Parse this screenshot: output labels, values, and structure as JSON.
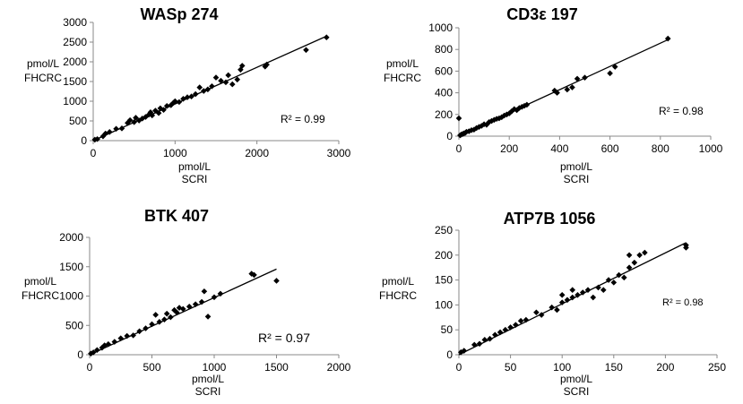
{
  "chart_data": [
    {
      "type": "scatter",
      "title": "WASp 274",
      "xlabel": [
        "pmol/L",
        "SCRI"
      ],
      "ylabel": [
        "pmol/L",
        "FHCRC"
      ],
      "xlim": [
        0,
        3000
      ],
      "ylim": [
        0,
        3000
      ],
      "xticks": [
        0,
        1000,
        2000,
        3000
      ],
      "yticks": [
        0,
        500,
        1000,
        1500,
        2000,
        2500,
        3000
      ],
      "r2_text": "R² = 0.99",
      "trendline": {
        "x": [
          0,
          2850
        ],
        "y": [
          0,
          2650
        ]
      },
      "points": [
        [
          20,
          25
        ],
        [
          50,
          40
        ],
        [
          120,
          110
        ],
        [
          150,
          180
        ],
        [
          200,
          220
        ],
        [
          280,
          300
        ],
        [
          350,
          310
        ],
        [
          420,
          450
        ],
        [
          450,
          520
        ],
        [
          500,
          470
        ],
        [
          520,
          580
        ],
        [
          560,
          510
        ],
        [
          600,
          560
        ],
        [
          640,
          600
        ],
        [
          680,
          660
        ],
        [
          700,
          720
        ],
        [
          720,
          640
        ],
        [
          760,
          760
        ],
        [
          800,
          700
        ],
        [
          820,
          820
        ],
        [
          860,
          780
        ],
        [
          900,
          880
        ],
        [
          950,
          900
        ],
        [
          980,
          960
        ],
        [
          1000,
          1000
        ],
        [
          1050,
          980
        ],
        [
          1100,
          1060
        ],
        [
          1150,
          1100
        ],
        [
          1200,
          1120
        ],
        [
          1250,
          1180
        ],
        [
          1300,
          1350
        ],
        [
          1350,
          1260
        ],
        [
          1400,
          1300
        ],
        [
          1450,
          1380
        ],
        [
          1500,
          1600
        ],
        [
          1560,
          1520
        ],
        [
          1620,
          1480
        ],
        [
          1650,
          1660
        ],
        [
          1700,
          1430
        ],
        [
          1760,
          1550
        ],
        [
          1800,
          1800
        ],
        [
          1820,
          1900
        ],
        [
          2100,
          1880
        ],
        [
          2120,
          1930
        ],
        [
          2600,
          2300
        ],
        [
          2850,
          2620
        ]
      ]
    },
    {
      "type": "scatter",
      "title": "CD3ε 197",
      "xlabel": [
        "pmol/L",
        "SCRI"
      ],
      "ylabel": [
        "pmol/L",
        "FHCRC"
      ],
      "xlim": [
        0,
        1000
      ],
      "ylim": [
        0,
        1000
      ],
      "xticks": [
        0,
        200,
        400,
        600,
        800,
        1000
      ],
      "yticks": [
        0,
        200,
        400,
        600,
        800,
        1000
      ],
      "r2_text": "R² = 0.98",
      "trendline": {
        "x": [
          0,
          830
        ],
        "y": [
          0,
          890
        ]
      },
      "points": [
        [
          0,
          165
        ],
        [
          5,
          8
        ],
        [
          10,
          15
        ],
        [
          15,
          20
        ],
        [
          20,
          25
        ],
        [
          25,
          30
        ],
        [
          30,
          40
        ],
        [
          40,
          45
        ],
        [
          50,
          55
        ],
        [
          60,
          60
        ],
        [
          70,
          75
        ],
        [
          80,
          85
        ],
        [
          90,
          95
        ],
        [
          100,
          110
        ],
        [
          110,
          105
        ],
        [
          120,
          130
        ],
        [
          130,
          140
        ],
        [
          140,
          150
        ],
        [
          150,
          160
        ],
        [
          160,
          165
        ],
        [
          170,
          175
        ],
        [
          180,
          190
        ],
        [
          190,
          200
        ],
        [
          200,
          210
        ],
        [
          210,
          230
        ],
        [
          220,
          250
        ],
        [
          230,
          240
        ],
        [
          240,
          260
        ],
        [
          250,
          270
        ],
        [
          260,
          280
        ],
        [
          270,
          290
        ],
        [
          380,
          420
        ],
        [
          390,
          400
        ],
        [
          430,
          430
        ],
        [
          450,
          450
        ],
        [
          470,
          530
        ],
        [
          500,
          540
        ],
        [
          600,
          580
        ],
        [
          620,
          640
        ],
        [
          830,
          900
        ]
      ]
    },
    {
      "type": "scatter",
      "title": "BTK 407",
      "xlabel": [
        "pmol/L",
        "SCRI"
      ],
      "ylabel": [
        "pmol/L",
        "FHCRC"
      ],
      "xlim": [
        0,
        2000
      ],
      "ylim": [
        0,
        2000
      ],
      "xticks": [
        0,
        500,
        1000,
        1500,
        2000
      ],
      "yticks": [
        0,
        500,
        1000,
        1500,
        2000
      ],
      "r2_text": "R² = 0.97",
      "trendline": {
        "x": [
          0,
          1500
        ],
        "y": [
          0,
          1460
        ]
      },
      "points": [
        [
          10,
          20
        ],
        [
          30,
          40
        ],
        [
          60,
          80
        ],
        [
          100,
          120
        ],
        [
          120,
          160
        ],
        [
          150,
          180
        ],
        [
          200,
          220
        ],
        [
          250,
          280
        ],
        [
          300,
          320
        ],
        [
          350,
          330
        ],
        [
          400,
          400
        ],
        [
          450,
          450
        ],
        [
          500,
          520
        ],
        [
          530,
          680
        ],
        [
          560,
          560
        ],
        [
          600,
          600
        ],
        [
          620,
          700
        ],
        [
          650,
          640
        ],
        [
          680,
          760
        ],
        [
          700,
          720
        ],
        [
          720,
          800
        ],
        [
          750,
          780
        ],
        [
          800,
          820
        ],
        [
          850,
          860
        ],
        [
          900,
          900
        ],
        [
          920,
          1080
        ],
        [
          950,
          650
        ],
        [
          1000,
          980
        ],
        [
          1050,
          1040
        ],
        [
          1300,
          1380
        ],
        [
          1320,
          1360
        ],
        [
          1500,
          1260
        ]
      ]
    },
    {
      "type": "scatter",
      "title": "ATP7B 1056",
      "xlabel": [
        "pmol/L",
        "SCRI"
      ],
      "ylabel": [
        "pmol/L",
        "FHCRC"
      ],
      "xlim": [
        0,
        250
      ],
      "ylim": [
        0,
        250
      ],
      "xticks": [
        0,
        50,
        100,
        150,
        200,
        250
      ],
      "yticks": [
        0,
        50,
        100,
        150,
        200,
        250
      ],
      "r2_text": "R² = 0.98",
      "trendline": {
        "x": [
          0,
          220
        ],
        "y": [
          0,
          225
        ]
      },
      "points": [
        [
          2,
          5
        ],
        [
          5,
          8
        ],
        [
          15,
          20
        ],
        [
          20,
          22
        ],
        [
          25,
          30
        ],
        [
          30,
          32
        ],
        [
          35,
          40
        ],
        [
          40,
          45
        ],
        [
          45,
          50
        ],
        [
          50,
          55
        ],
        [
          55,
          60
        ],
        [
          60,
          68
        ],
        [
          65,
          70
        ],
        [
          75,
          85
        ],
        [
          80,
          80
        ],
        [
          90,
          95
        ],
        [
          95,
          90
        ],
        [
          100,
          105
        ],
        [
          100,
          120
        ],
        [
          105,
          110
        ],
        [
          110,
          115
        ],
        [
          110,
          130
        ],
        [
          115,
          120
        ],
        [
          120,
          125
        ],
        [
          125,
          130
        ],
        [
          130,
          115
        ],
        [
          135,
          135
        ],
        [
          140,
          130
        ],
        [
          145,
          150
        ],
        [
          150,
          145
        ],
        [
          155,
          160
        ],
        [
          160,
          155
        ],
        [
          165,
          175
        ],
        [
          170,
          185
        ],
        [
          175,
          200
        ],
        [
          180,
          205
        ],
        [
          165,
          200
        ],
        [
          220,
          215
        ],
        [
          220,
          220
        ]
      ]
    }
  ]
}
